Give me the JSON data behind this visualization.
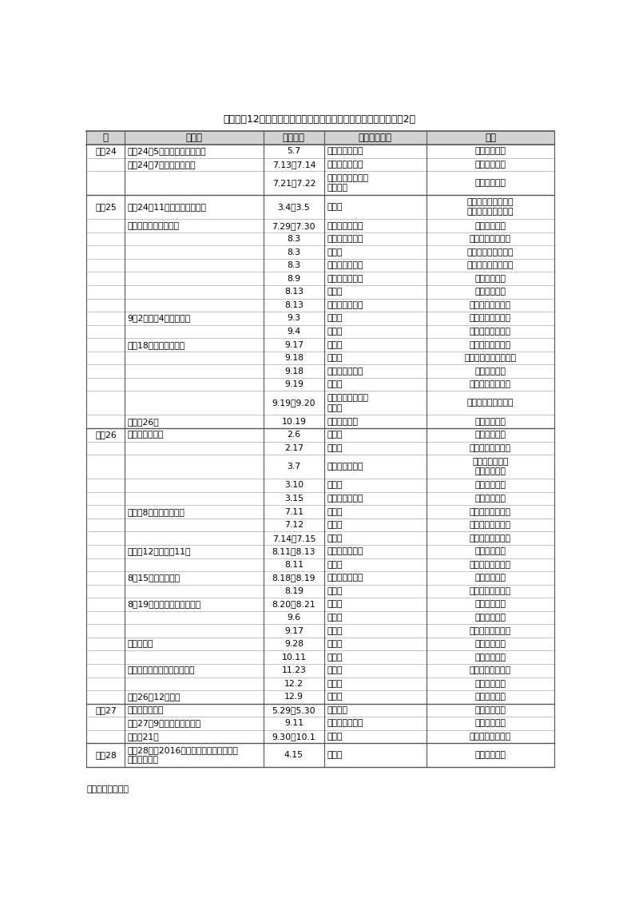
{
  "title": "附属資料12　政府調査団の派遣状況（阪神・淡路大震災以降）（2）",
  "source": "出典：内閣府資料",
  "columns": [
    "年",
    "災害名",
    "派遣月日",
    "調査都道府県",
    "団長"
  ],
  "col_ratios": [
    0.082,
    0.296,
    0.13,
    0.218,
    0.274
  ],
  "header_bg": "#d3d3d3",
  "cell_bg": "#ffffff",
  "border_thin": "#999999",
  "border_thick": "#555555",
  "text_color": "#111111",
  "rows": [
    [
      "平成24",
      "平成24年5月に発生した突風等",
      "5.7",
      "茨城県、栃木県",
      "内閣府副大臣"
    ],
    [
      "",
      "平成24年7月九州北部豪雨",
      "7.13～7.14",
      "熊本県、大分県",
      "防災担当大臣"
    ],
    [
      "",
      "",
      "7.21～7.22",
      "福岡県、大分県、\n鹿児島県",
      "防災担当大臣"
    ],
    [
      "平成25",
      "平成24年11月末からの大雪等",
      "3.4～3.5",
      "北海道",
      "内閣府大臣政務官、\n内閣総理大臣補佐官"
    ],
    [
      "",
      "梅雨期における大雨等",
      "7.29～7.30",
      "島根県、山口県",
      "内閣府副大臣"
    ],
    [
      "",
      "",
      "8.3",
      "山形県、福島県",
      "内閣府大臣政務官"
    ],
    [
      "",
      "",
      "8.3",
      "新潟県",
      "農林水産大臣政務官"
    ],
    [
      "",
      "",
      "8.3",
      "岩手県、宮城県",
      "国土交通大臣政務官"
    ],
    [
      "",
      "",
      "8.9",
      "島根県、山口県",
      "防災担当大臣"
    ],
    [
      "",
      "",
      "8.13",
      "秋田県",
      "内閣府副大臣"
    ],
    [
      "",
      "",
      "8.13",
      "岩手県、秋田県",
      "内閣府大臣政務官"
    ],
    [
      "",
      "9月2日及び4日の竜巻等",
      "9.3",
      "埼玉県",
      "内閣府大臣政務官"
    ],
    [
      "",
      "",
      "9.4",
      "千葉県",
      "内閣府大臣政務官"
    ],
    [
      "",
      "台風18号による大雨等",
      "9.17",
      "埼玉県",
      "内閣府大臣政務官"
    ],
    [
      "",
      "",
      "9.18",
      "京都府",
      "防災担当大臣事務代理"
    ],
    [
      "",
      "",
      "9.18",
      "滋賀県、福井県",
      "内閣府副大臣"
    ],
    [
      "",
      "",
      "9.19",
      "三重県",
      "内閣府大臣政務官"
    ],
    [
      "",
      "",
      "9.19～9.20",
      "青森県、岩手県、\n秋田県",
      "内閣総理大臣補佐官"
    ],
    [
      "",
      "台風第26号",
      "10.19",
      "東京都大島町",
      "防災担当大臣"
    ],
    [
      "平成26",
      "今冬期の大雪等",
      "2.6",
      "秋田県",
      "内閣府副大臣"
    ],
    [
      "",
      "",
      "2.17",
      "山梨県",
      "内閣府大臣政務官"
    ],
    [
      "",
      "",
      "3.7",
      "東京都、山梨県",
      "内閣府副大臣、\n環境省副大臣"
    ],
    [
      "",
      "",
      "3.10",
      "埼玉県",
      "内閣府副大臣"
    ],
    [
      "",
      "",
      "3.15",
      "長野県、群馬県",
      "内閣府副大臣"
    ],
    [
      "",
      "台風第8号及び梅雨前線",
      "7.11",
      "長野県",
      "内閣府大臣政務官"
    ],
    [
      "",
      "",
      "7.12",
      "山形県",
      "内閣府大臣政務官"
    ],
    [
      "",
      "",
      "7.14～7.15",
      "沖縄県",
      "内閣府大臣政務官"
    ],
    [
      "",
      "台風第12号及び第11号",
      "8.11～8.13",
      "徳島県、高知県",
      "内閣府副大臣"
    ],
    [
      "",
      "",
      "8.11",
      "栃木県",
      "内閣府大臣政務官"
    ],
    [
      "",
      "8月15日からの大雨",
      "8.18～8.19",
      "兵庫県、京都府",
      "内閣府副大臣"
    ],
    [
      "",
      "",
      "8.19",
      "岐阜県",
      "内閣府大臣政務官"
    ],
    [
      "",
      "8月19日からの広島県の大雨",
      "8.20～8.21",
      "広島県",
      "防災担当大臣"
    ],
    [
      "",
      "",
      "9.6",
      "広島県",
      "防災担当大臣"
    ],
    [
      "",
      "",
      "9.17",
      "広島県",
      "内閣府大臣政務官"
    ],
    [
      "",
      "御嶽山噴火",
      "9.28",
      "長野県",
      "内閣府副大臣"
    ],
    [
      "",
      "",
      "10.11",
      "長野県",
      "防災担当大臣"
    ],
    [
      "",
      "長野県北部を震源とする地震",
      "11.23",
      "長野県",
      "内閣府大臣政務官"
    ],
    [
      "",
      "",
      "12.2",
      "長野県",
      "防災担当大臣"
    ],
    [
      "",
      "平成26年12月大雪",
      "12.9",
      "徳島県",
      "防災担当大臣"
    ],
    [
      "平成27",
      "口永良部島噴火",
      "5.29～5.30",
      "鹿児島県",
      "内閣府副大臣"
    ],
    [
      "",
      "平成27年9月関東・東北豪雨",
      "9.11",
      "茨城県、栃木県",
      "内閣府副大臣"
    ],
    [
      "",
      "台風第21号",
      "9.30～10.1",
      "沖縄県",
      "内閣府大臣政務官"
    ],
    [
      "平成28",
      "平成28年（2016年）熊本県熊本地方を震\n源とする地震",
      "4.15",
      "熊本県",
      "内閣府副大臣"
    ]
  ]
}
